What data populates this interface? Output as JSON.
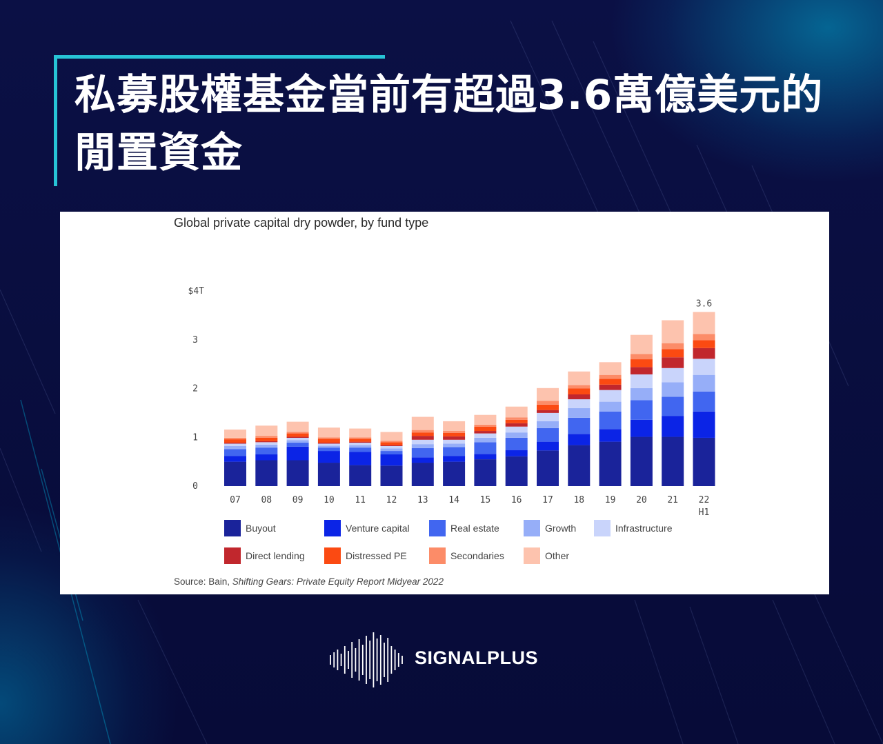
{
  "title": "私募股權基金當前有超過3.6萬億美元的閒置資金",
  "brand": "SIGNALPLUS",
  "colors": {
    "accent": "#27c4d6",
    "background": "#0a0f3a"
  },
  "chart_data": {
    "type": "bar",
    "stacked": true,
    "title": "Global private capital dry powder, by fund type",
    "categories": [
      "07",
      "08",
      "09",
      "10",
      "11",
      "12",
      "13",
      "14",
      "15",
      "16",
      "17",
      "18",
      "19",
      "20",
      "21",
      "22 H1"
    ],
    "y_ticks": [
      "0",
      "1",
      "2",
      "3",
      "$4T"
    ],
    "ylim": [
      0,
      4
    ],
    "annotations": [
      {
        "category": "22 H1",
        "text": "3.6"
      }
    ],
    "grid": false,
    "legend_position": "bottom",
    "series": [
      {
        "name": "Buyout",
        "color": "#1a239a",
        "values": [
          0.5,
          0.53,
          0.53,
          0.48,
          0.43,
          0.42,
          0.48,
          0.5,
          0.55,
          0.61,
          0.73,
          0.84,
          0.91,
          1.01,
          1.01,
          0.99
        ]
      },
      {
        "name": "Venture capital",
        "color": "#0b24e6",
        "values": [
          0.12,
          0.12,
          0.28,
          0.24,
          0.27,
          0.23,
          0.11,
          0.12,
          0.11,
          0.13,
          0.18,
          0.23,
          0.26,
          0.35,
          0.43,
          0.54
        ]
      },
      {
        "name": "Real estate",
        "color": "#4166f0",
        "values": [
          0.14,
          0.14,
          0.08,
          0.07,
          0.09,
          0.07,
          0.19,
          0.18,
          0.24,
          0.25,
          0.28,
          0.33,
          0.36,
          0.4,
          0.39,
          0.41
        ]
      },
      {
        "name": "Growth",
        "color": "#96aef8",
        "values": [
          0.06,
          0.06,
          0.05,
          0.04,
          0.05,
          0.05,
          0.08,
          0.07,
          0.09,
          0.11,
          0.14,
          0.2,
          0.2,
          0.25,
          0.3,
          0.34
        ]
      },
      {
        "name": "Infrastructure",
        "color": "#c9d4fb",
        "values": [
          0.05,
          0.05,
          0.05,
          0.04,
          0.05,
          0.05,
          0.09,
          0.08,
          0.09,
          0.12,
          0.17,
          0.18,
          0.24,
          0.28,
          0.29,
          0.33
        ]
      },
      {
        "name": "Direct lending",
        "color": "#c1272d",
        "values": [
          0.02,
          0.02,
          0.02,
          0.02,
          0.02,
          0.02,
          0.08,
          0.07,
          0.05,
          0.07,
          0.06,
          0.1,
          0.11,
          0.15,
          0.22,
          0.22
        ]
      },
      {
        "name": "Distressed PE",
        "color": "#fb4a12",
        "values": [
          0.07,
          0.07,
          0.07,
          0.08,
          0.06,
          0.06,
          0.07,
          0.07,
          0.09,
          0.07,
          0.11,
          0.12,
          0.12,
          0.16,
          0.17,
          0.16
        ]
      },
      {
        "name": "Secondaries",
        "color": "#fc8c68",
        "values": [
          0.03,
          0.04,
          0.03,
          0.03,
          0.03,
          0.03,
          0.05,
          0.04,
          0.04,
          0.05,
          0.08,
          0.07,
          0.08,
          0.11,
          0.12,
          0.13
        ]
      },
      {
        "name": "Other",
        "color": "#fdc3ae",
        "values": [
          0.17,
          0.21,
          0.21,
          0.2,
          0.18,
          0.18,
          0.27,
          0.2,
          0.2,
          0.22,
          0.26,
          0.28,
          0.26,
          0.39,
          0.47,
          0.45
        ]
      }
    ],
    "source_prefix": "Source: Bain, ",
    "source_publication": "Shifting Gears: Private Equity Report Midyear 2022"
  }
}
